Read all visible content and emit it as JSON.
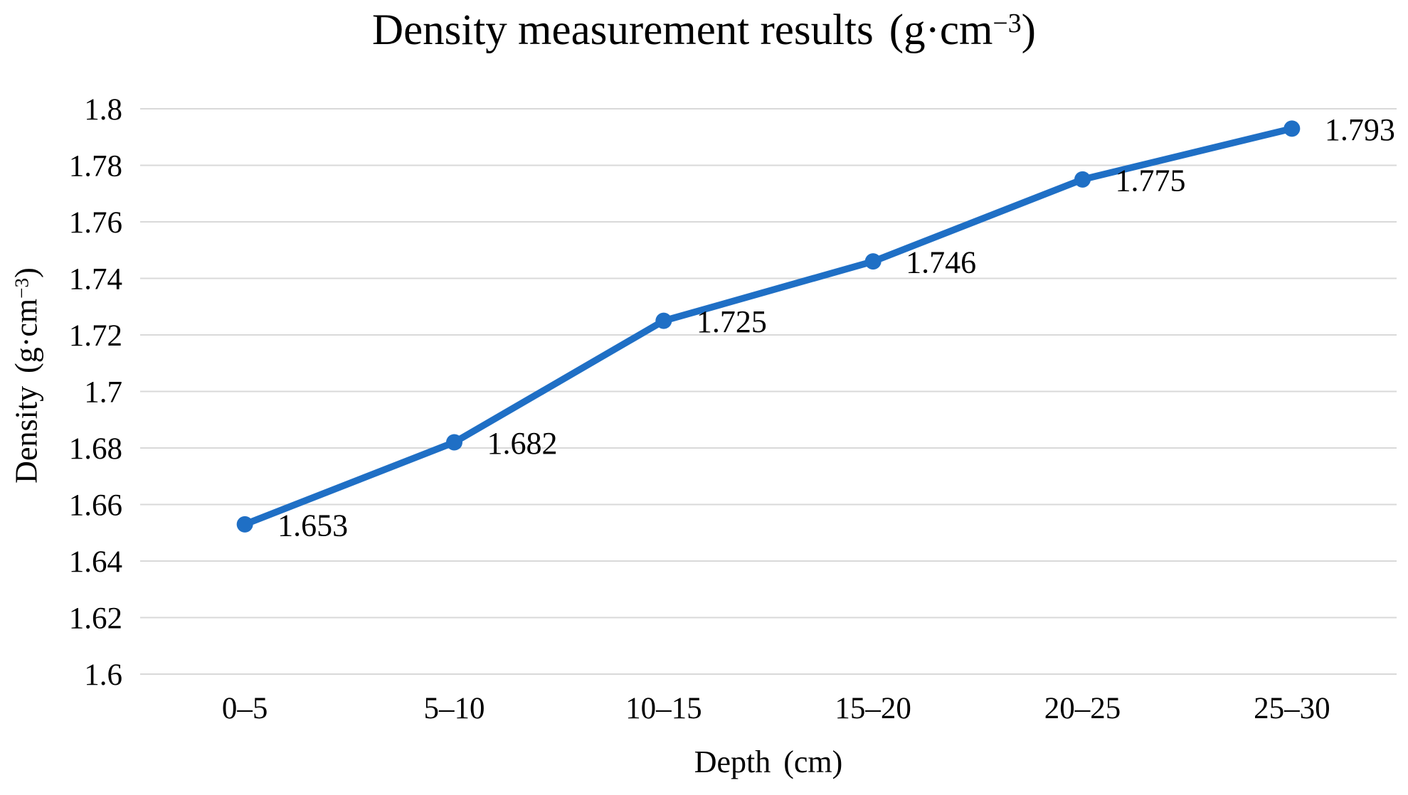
{
  "chart_data": {
    "type": "line",
    "title": {
      "text": "Density measurement results",
      "unit_open": "(g·cm",
      "unit_sup": "−3",
      "unit_close": ")"
    },
    "xlabel": {
      "text": "Depth",
      "unit_open": "(cm",
      "unit_close": ")"
    },
    "ylabel": {
      "text": "Density",
      "unit_open": "(g·cm",
      "unit_sup": "−3",
      "unit_close": ")"
    },
    "categories": [
      "0–5",
      "5–10",
      "10–15",
      "15–20",
      "20–25",
      "25–30"
    ],
    "values": [
      1.653,
      1.682,
      1.725,
      1.746,
      1.775,
      1.793
    ],
    "data_labels": [
      "1.653",
      "1.682",
      "1.725",
      "1.746",
      "1.775",
      "1.793"
    ],
    "yticks": [
      1.6,
      1.62,
      1.64,
      1.66,
      1.68,
      1.7,
      1.72,
      1.74,
      1.76,
      1.78,
      1.8
    ],
    "ytick_labels": [
      "1.6",
      "1.62",
      "1.64",
      "1.66",
      "1.68",
      "1.7",
      "1.72",
      "1.74",
      "1.76",
      "1.78",
      "1.8"
    ],
    "ylim": [
      1.6,
      1.8
    ],
    "grid": "horizontal",
    "legend": "none",
    "colors": {
      "line": "#1F6FC5",
      "marker": "#1F6FC5",
      "gridline": "#D9D9D9",
      "text": "#000000",
      "background": "#FFFFFF"
    }
  }
}
